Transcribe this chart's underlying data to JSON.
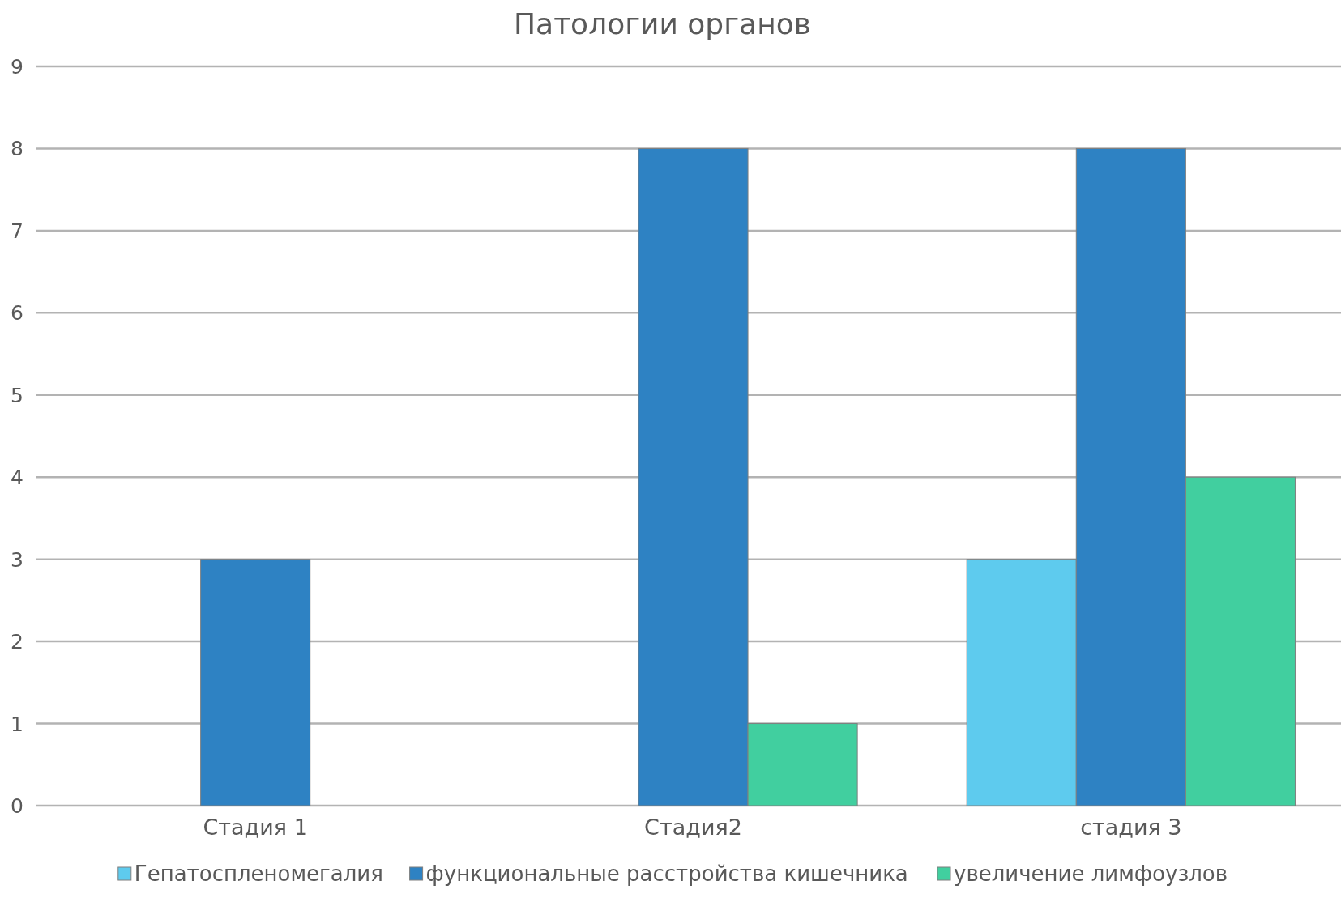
{
  "chart_data": {
    "type": "bar",
    "title": "Патологии органов",
    "categories": [
      "Стадия 1",
      "Стадия2",
      "стадия 3"
    ],
    "series": [
      {
        "name": "Гепатоспленомегалия",
        "color": "#5ecbee",
        "values": [
          null,
          null,
          3
        ]
      },
      {
        "name": "функциональные расстройства кишечника",
        "color": "#2e82c3",
        "values": [
          3,
          8,
          8
        ]
      },
      {
        "name": "увеличение лимфоузлов",
        "color": "#41cf9f",
        "values": [
          null,
          1,
          4
        ]
      }
    ],
    "ylim": [
      0,
      9
    ],
    "yticks": [
      0,
      1,
      2,
      3,
      4,
      5,
      6,
      7,
      8,
      9
    ],
    "grid": "y",
    "legend": "bottom"
  }
}
